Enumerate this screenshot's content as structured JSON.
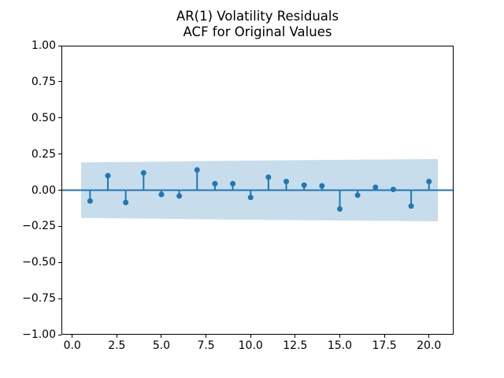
{
  "chart_data": {
    "type": "stem",
    "title": "AR(1) Volatility Residuals",
    "subtitle": "ACF for Original Values",
    "xlabel": "",
    "ylabel": "",
    "xlim": [
      -0.605,
      21.38
    ],
    "ylim": [
      -1.0,
      1.0
    ],
    "grid": false,
    "legend": "none",
    "x_ticks": {
      "values": [
        0,
        2.5,
        5,
        7.5,
        10,
        12.5,
        15,
        17.5,
        20
      ],
      "labels": [
        "0.0",
        "2.5",
        "5.0",
        "7.5",
        "10.0",
        "12.5",
        "15.0",
        "17.5",
        "20.0"
      ]
    },
    "y_ticks": {
      "values": [
        1.0,
        0.75,
        0.5,
        0.25,
        0.0,
        -0.25,
        -0.5,
        -0.75,
        -1.0
      ],
      "labels": [
        "1.00",
        "0.75",
        "0.50",
        "0.25",
        "0.00",
        "−0.25",
        "−0.50",
        "−0.75",
        "−1.00"
      ]
    },
    "lags": [
      1,
      2,
      3,
      4,
      5,
      6,
      7,
      8,
      9,
      10,
      11,
      12,
      13,
      14,
      15,
      16,
      17,
      18,
      19,
      20
    ],
    "values": [
      -0.075,
      0.1,
      -0.085,
      0.12,
      -0.03,
      -0.04,
      0.14,
      0.045,
      0.045,
      -0.05,
      0.09,
      0.06,
      0.035,
      0.03,
      -0.13,
      -0.035,
      0.02,
      0.005,
      -0.11,
      0.06
    ],
    "zero_line": 0.0,
    "confidence_band": {
      "x": [
        0.5,
        4,
        8,
        12,
        16,
        20.5
      ],
      "hi": [
        0.192,
        0.196,
        0.202,
        0.207,
        0.211,
        0.215
      ],
      "lo": [
        -0.192,
        -0.196,
        -0.202,
        -0.207,
        -0.211,
        -0.215
      ]
    },
    "colors": {
      "stem": "#1f77b4",
      "marker": "#1f77b4",
      "zero_line": "#1f77b4",
      "band": "rgba(31,119,180,0.25)",
      "axis": "#000000",
      "background": "#ffffff"
    },
    "marker_radius": 3.5,
    "stem_width": 2
  }
}
